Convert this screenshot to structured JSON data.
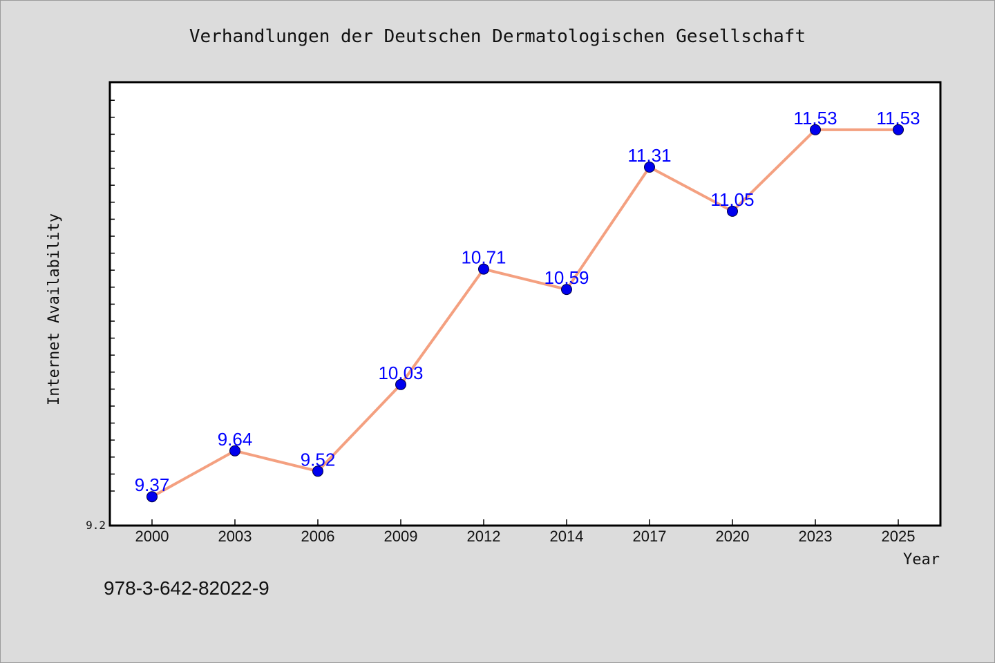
{
  "chart_data": {
    "type": "line",
    "title": "Verhandlungen der Deutschen Dermatologischen Gesellschaft",
    "xlabel": "Year",
    "ylabel": "Internet Availability",
    "categories": [
      "2000",
      "2003",
      "2006",
      "2009",
      "2012",
      "2014",
      "2017",
      "2020",
      "2023",
      "2025"
    ],
    "series": [
      {
        "values": [
          9.37,
          9.64,
          9.52,
          10.03,
          10.71,
          10.59,
          11.31,
          11.05,
          11.53,
          11.53
        ]
      }
    ],
    "data_labels": [
      "9.37",
      "9.64",
      "9.52",
      "10.03",
      "10.71",
      "10.59",
      "11.31",
      "11.05",
      "11.53",
      "11.53"
    ],
    "y_tick_labels": [
      "9.2"
    ],
    "ylim": [
      9.2,
      11.81
    ],
    "grid": false,
    "legend": "none",
    "colors": {
      "line": "#f4a080",
      "marker": "#0000ee",
      "data_label": "#0000ff"
    }
  },
  "footer": {
    "code": "978-3-642-82022-9"
  }
}
